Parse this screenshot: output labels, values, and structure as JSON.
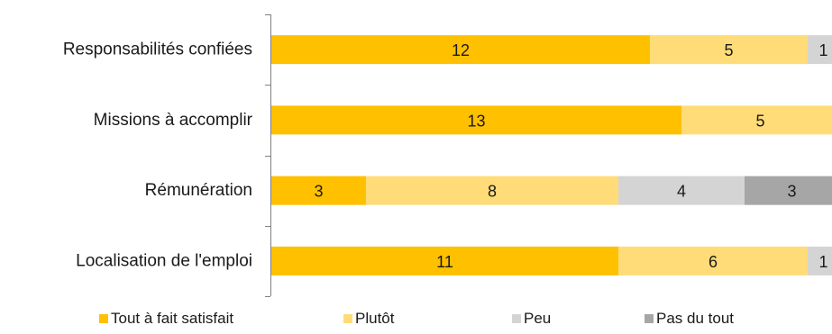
{
  "chart_data": {
    "type": "bar",
    "orientation": "horizontal",
    "stacked": true,
    "categories": [
      "Responsabilités confiées",
      "Missions à accomplir ",
      "Rémunération",
      "Localisation de l'emploi"
    ],
    "series": [
      {
        "name": "Tout à fait satisfait",
        "color": "#FFC000",
        "values": [
          12,
          13,
          3,
          11
        ]
      },
      {
        "name": "Plutôt",
        "color": "#FFDC78",
        "values": [
          5,
          5,
          8,
          6
        ]
      },
      {
        "name": "Peu",
        "color": "#D4D4D4",
        "values": [
          1,
          0,
          4,
          1
        ]
      },
      {
        "name": "Pas du tout",
        "color": "#A6A6A6",
        "values": [
          0,
          0,
          3,
          0
        ]
      }
    ],
    "value_labels": [
      [
        "12",
        "13",
        "3",
        "11"
      ],
      [
        "5",
        "5",
        "8",
        "6"
      ],
      [
        "1",
        "",
        "4",
        "1"
      ],
      [
        "",
        "",
        "3",
        ""
      ]
    ],
    "xlim": [
      0,
      18
    ],
    "grid": false,
    "legend_position": "bottom",
    "title": "",
    "xlabel": "",
    "ylabel": ""
  }
}
